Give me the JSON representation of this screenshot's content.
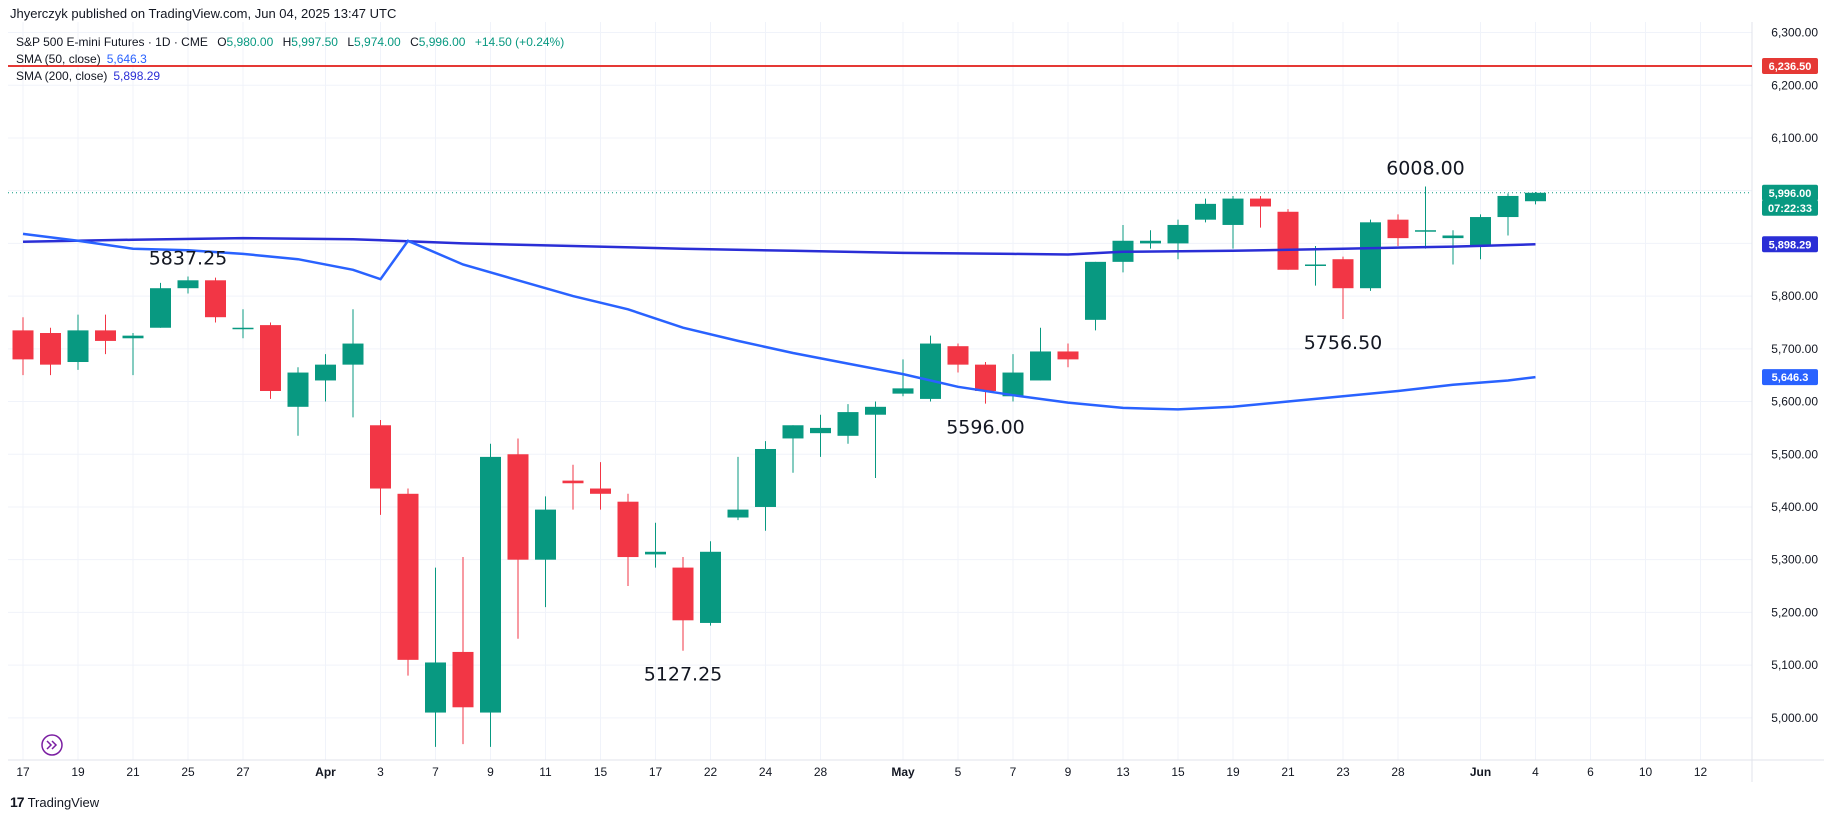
{
  "publish_line": "Jhyerczyk published on TradingView.com, Jun 04, 2025 13:47 UTC",
  "legend": {
    "symbol": "S&P 500 E-mini Futures · 1D · CME",
    "open_label": "O",
    "open": "5,980.00",
    "high_label": "H",
    "high": "5,997.50",
    "low_label": "L",
    "low": "5,974.00",
    "close_label": "C",
    "close": "5,996.00",
    "change": "+14.50 (+0.24%)",
    "sma50_label": "SMA (50, close)",
    "sma50_value": "5,646.3",
    "sma200_label": "SMA (200, close)",
    "sma200_value": "5,898.29"
  },
  "footer": {
    "brand": "TradingView"
  },
  "colors": {
    "up": "#089981",
    "down": "#f23645",
    "sma50": "#2962ff",
    "sma200": "#2a2ed6",
    "resistance": "#e53935",
    "grid": "#f0f3fa"
  },
  "chart_data": {
    "type": "candlestick",
    "y_range": [
      4920,
      6320
    ],
    "y_ticks": [
      "5,000.00",
      "5,100.00",
      "5,200.00",
      "5,300.00",
      "5,400.00",
      "5,500.00",
      "5,600.00",
      "5,700.00",
      "5,800.00",
      "5,900.00",
      "6,000.00",
      "6,100.00",
      "6,200.00",
      "6,300.00"
    ],
    "y_tick_values": [
      5000,
      5100,
      5200,
      5300,
      5400,
      5500,
      5600,
      5700,
      5800,
      5900,
      6000,
      6100,
      6200,
      6300
    ],
    "x_ticks": [
      "17",
      "19",
      "21",
      "25",
      "27",
      "Apr",
      "3",
      "7",
      "9",
      "11",
      "15",
      "17",
      "22",
      "24",
      "28",
      "May",
      "5",
      "7",
      "9",
      "13",
      "15",
      "19",
      "21",
      "23",
      "28",
      "Jun",
      "4",
      "6",
      "10",
      "12"
    ],
    "x_tick_index": [
      0,
      2,
      4,
      6,
      8,
      11,
      13,
      15,
      17,
      19,
      21,
      23,
      25,
      27,
      29,
      32,
      34,
      36,
      38,
      40,
      42,
      44,
      46,
      48,
      50,
      53,
      55,
      57,
      59,
      61
    ],
    "x_ticks_bold": [
      "Apr",
      "May",
      "Jun"
    ],
    "candles": [
      {
        "o": 5735,
        "h": 5760,
        "l": 5650,
        "c": 5680
      },
      {
        "o": 5730,
        "h": 5740,
        "l": 5650,
        "c": 5670
      },
      {
        "o": 5675,
        "h": 5765,
        "l": 5660,
        "c": 5735
      },
      {
        "o": 5735,
        "h": 5765,
        "l": 5690,
        "c": 5715
      },
      {
        "o": 5720,
        "h": 5730,
        "l": 5650,
        "c": 5725
      },
      {
        "o": 5740,
        "h": 5825,
        "l": 5740,
        "c": 5815
      },
      {
        "o": 5815,
        "h": 5837.25,
        "l": 5805,
        "c": 5830
      },
      {
        "o": 5830,
        "h": 5835,
        "l": 5750,
        "c": 5760
      },
      {
        "o": 5740,
        "h": 5775,
        "l": 5720,
        "c": 5740
      },
      {
        "o": 5745,
        "h": 5750,
        "l": 5605,
        "c": 5620
      },
      {
        "o": 5590,
        "h": 5665,
        "l": 5535,
        "c": 5655
      },
      {
        "o": 5640,
        "h": 5690,
        "l": 5600,
        "c": 5670
      },
      {
        "o": 5670,
        "h": 5775,
        "l": 5570,
        "c": 5710
      },
      {
        "o": 5555,
        "h": 5565,
        "l": 5385,
        "c": 5435
      },
      {
        "o": 5425,
        "h": 5435,
        "l": 5080,
        "c": 5110
      },
      {
        "o": 5010,
        "h": 5285,
        "l": 4945,
        "c": 5105
      },
      {
        "o": 5125,
        "h": 5305,
        "l": 4950,
        "c": 5020
      },
      {
        "o": 5010,
        "h": 5520,
        "l": 4945,
        "c": 5495
      },
      {
        "o": 5500,
        "h": 5530,
        "l": 5150,
        "c": 5300
      },
      {
        "o": 5300,
        "h": 5420,
        "l": 5210,
        "c": 5395
      },
      {
        "o": 5450,
        "h": 5480,
        "l": 5395,
        "c": 5445
      },
      {
        "o": 5435,
        "h": 5485,
        "l": 5395,
        "c": 5425
      },
      {
        "o": 5410,
        "h": 5425,
        "l": 5250,
        "c": 5305
      },
      {
        "o": 5310,
        "h": 5370,
        "l": 5285,
        "c": 5315
      },
      {
        "o": 5285,
        "h": 5305,
        "l": 5127.25,
        "c": 5185
      },
      {
        "o": 5180,
        "h": 5335,
        "l": 5175,
        "c": 5315
      },
      {
        "o": 5380,
        "h": 5495,
        "l": 5375,
        "c": 5395
      },
      {
        "o": 5400,
        "h": 5525,
        "l": 5355,
        "c": 5510
      },
      {
        "o": 5530,
        "h": 5555,
        "l": 5465,
        "c": 5555
      },
      {
        "o": 5540,
        "h": 5575,
        "l": 5495,
        "c": 5550
      },
      {
        "o": 5535,
        "h": 5595,
        "l": 5520,
        "c": 5580
      },
      {
        "o": 5575,
        "h": 5600,
        "l": 5455,
        "c": 5590
      },
      {
        "o": 5615,
        "h": 5680,
        "l": 5610,
        "c": 5625
      },
      {
        "o": 5605,
        "h": 5725,
        "l": 5600,
        "c": 5710
      },
      {
        "o": 5705,
        "h": 5710,
        "l": 5655,
        "c": 5670
      },
      {
        "o": 5670,
        "h": 5675,
        "l": 5596,
        "c": 5620
      },
      {
        "o": 5610,
        "h": 5690,
        "l": 5600,
        "c": 5655
      },
      {
        "o": 5640,
        "h": 5740,
        "l": 5640,
        "c": 5695
      },
      {
        "o": 5695,
        "h": 5710,
        "l": 5665,
        "c": 5680
      },
      {
        "o": 5755,
        "h": 5865,
        "l": 5735,
        "c": 5865
      },
      {
        "o": 5865,
        "h": 5935,
        "l": 5845,
        "c": 5905
      },
      {
        "o": 5900,
        "h": 5925,
        "l": 5890,
        "c": 5905
      },
      {
        "o": 5900,
        "h": 5945,
        "l": 5870,
        "c": 5935
      },
      {
        "o": 5945,
        "h": 5985,
        "l": 5940,
        "c": 5975
      },
      {
        "o": 5935,
        "h": 5990,
        "l": 5890,
        "c": 5985
      },
      {
        "o": 5985,
        "h": 5990,
        "l": 5930,
        "c": 5970
      },
      {
        "o": 5960,
        "h": 5965,
        "l": 5850,
        "c": 5850
      },
      {
        "o": 5860,
        "h": 5895,
        "l": 5820,
        "c": 5860
      },
      {
        "o": 5870,
        "h": 5875,
        "l": 5756.5,
        "c": 5815
      },
      {
        "o": 5815,
        "h": 5945,
        "l": 5810,
        "c": 5940
      },
      {
        "o": 5945,
        "h": 5955,
        "l": 5895,
        "c": 5910
      },
      {
        "o": 5925,
        "h": 6008,
        "l": 5890,
        "c": 5925
      },
      {
        "o": 5910,
        "h": 5925,
        "l": 5860,
        "c": 5915
      },
      {
        "o": 5895,
        "h": 5955,
        "l": 5870,
        "c": 5950
      },
      {
        "o": 5950,
        "h": 5995,
        "l": 5915,
        "c": 5990
      },
      {
        "o": 5980,
        "h": 5997.5,
        "l": 5974,
        "c": 5996
      }
    ],
    "sma50": [
      [
        0,
        5918
      ],
      [
        2,
        5905
      ],
      [
        4,
        5890
      ],
      [
        6,
        5887
      ],
      [
        8,
        5880
      ],
      [
        10,
        5870
      ],
      [
        12,
        5850
      ],
      [
        13,
        5832
      ],
      [
        14,
        5905
      ],
      [
        16,
        5860
      ],
      [
        18,
        5830
      ],
      [
        20,
        5800
      ],
      [
        22,
        5775
      ],
      [
        24,
        5740
      ],
      [
        26,
        5715
      ],
      [
        28,
        5692
      ],
      [
        30,
        5672
      ],
      [
        32,
        5652
      ],
      [
        34,
        5628
      ],
      [
        36,
        5612
      ],
      [
        38,
        5598
      ],
      [
        40,
        5588
      ],
      [
        42,
        5585
      ],
      [
        44,
        5590
      ],
      [
        46,
        5600
      ],
      [
        48,
        5610
      ],
      [
        50,
        5620
      ],
      [
        52,
        5632
      ],
      [
        54,
        5640
      ],
      [
        55,
        5646.3
      ]
    ],
    "sma200": [
      [
        0,
        5903
      ],
      [
        4,
        5907
      ],
      [
        8,
        5910
      ],
      [
        12,
        5908
      ],
      [
        16,
        5900
      ],
      [
        20,
        5895
      ],
      [
        24,
        5890
      ],
      [
        28,
        5886
      ],
      [
        32,
        5882
      ],
      [
        36,
        5880
      ],
      [
        38,
        5879
      ],
      [
        40,
        5884
      ],
      [
        44,
        5886
      ],
      [
        48,
        5890
      ],
      [
        52,
        5894
      ],
      [
        55,
        5898.29
      ]
    ],
    "resistance": 6236.5,
    "resistance_label": "6,236.50",
    "last_price_label": "5,996.00",
    "countdown_label": "07:22:33",
    "sma200_tag": "5,898.29",
    "sma50_tag": "5,646.3",
    "annotations": [
      {
        "text": "5837.25",
        "index": 6,
        "price": 5837.25,
        "pos": "above"
      },
      {
        "text": "5127.25",
        "index": 24,
        "price": 5127.25,
        "pos": "below"
      },
      {
        "text": "5596.00",
        "index": 35,
        "price": 5596,
        "pos": "below"
      },
      {
        "text": "5756.50",
        "index": 48,
        "price": 5756.5,
        "pos": "below"
      },
      {
        "text": "6008.00",
        "index": 51,
        "price": 6008,
        "pos": "above"
      }
    ]
  }
}
